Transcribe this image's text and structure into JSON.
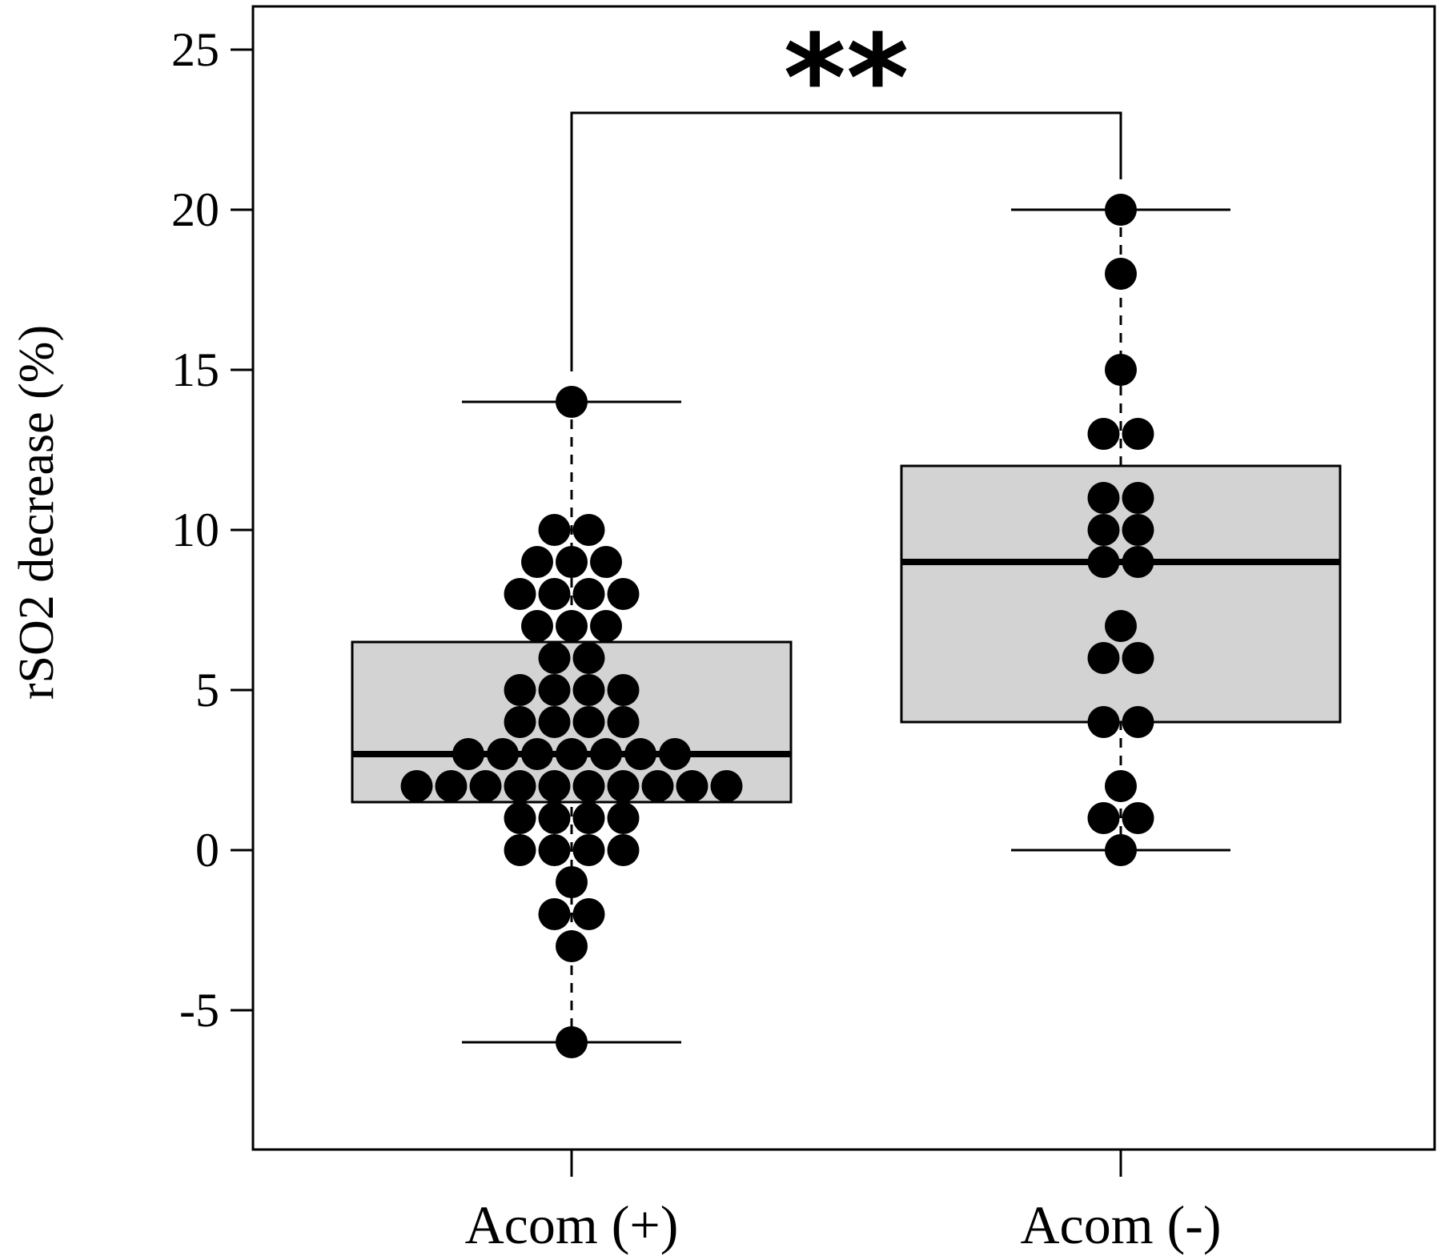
{
  "chart_data": {
    "type": "box",
    "title": "",
    "xlabel": "",
    "ylabel": "rSO2 decrease (%)",
    "ylim": [
      -9,
      26
    ],
    "yticks": [
      -5,
      0,
      5,
      10,
      15,
      20,
      25
    ],
    "ytick_labels": [
      "-5",
      "0",
      "5",
      "10",
      "15",
      "20",
      "25"
    ],
    "grid": false,
    "legend": "none",
    "categories": [
      "Acom (+)",
      "Acom (-)"
    ],
    "boxes": [
      {
        "category": "Acom (+)",
        "whisker_low": -6,
        "q1": 1.5,
        "median": 3,
        "q3": 6.5,
        "whisker_high": 14
      },
      {
        "category": "Acom (-)",
        "whisker_low": 0,
        "q1": 4,
        "median": 9,
        "q3": 12,
        "whisker_high": 20
      }
    ],
    "points": [
      [
        14,
        10,
        10,
        9,
        9,
        9,
        8,
        8,
        8,
        8,
        7,
        7,
        7,
        6,
        6,
        5,
        5,
        5,
        5,
        4,
        4,
        4,
        4,
        3,
        3,
        3,
        3,
        3,
        3,
        3,
        2,
        2,
        2,
        2,
        2,
        2,
        2,
        2,
        2,
        2,
        1,
        1,
        1,
        1,
        0,
        0,
        0,
        0,
        -1,
        -2,
        -2,
        -3,
        -6
      ],
      [
        20,
        18,
        15,
        13,
        13,
        11,
        11,
        10,
        10,
        9,
        9,
        7,
        6,
        6,
        4,
        4,
        2,
        1,
        1,
        0
      ]
    ],
    "significance": {
      "label": "**",
      "groups": [
        "Acom (+)",
        "Acom (-)"
      ]
    },
    "colors": {
      "box_fill": "#d3d3d3",
      "points": "#000000",
      "lines": "#000000"
    }
  }
}
